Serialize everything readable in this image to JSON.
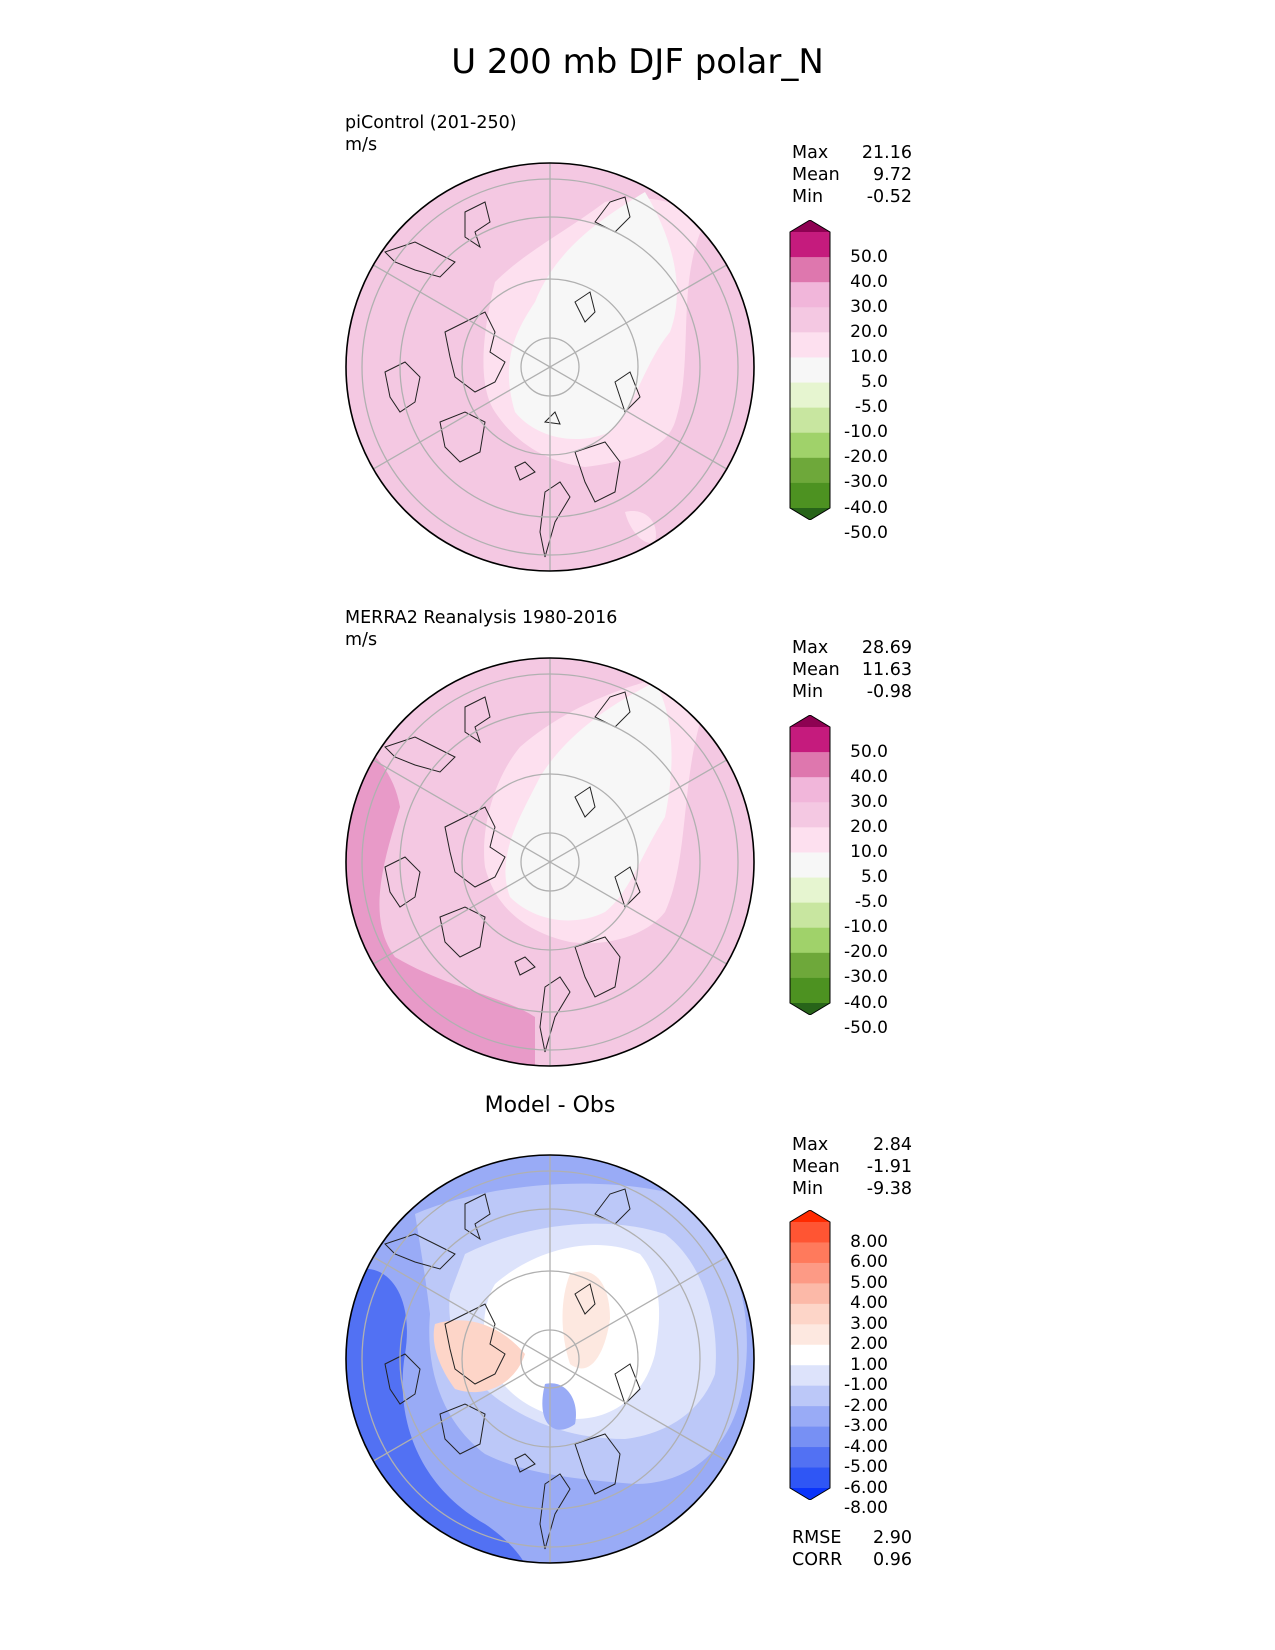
{
  "title": "U 200 mb DJF polar_N",
  "panels": [
    {
      "title": "piControl (201-250)",
      "units": "m/s",
      "stats": {
        "max_label": "Max",
        "max": "21.16",
        "mean_label": "Mean",
        "mean": "9.72",
        "min_label": "Min",
        "min": "-0.52"
      },
      "colorbar": {
        "labels": [
          "50.0",
          "40.0",
          "30.0",
          "20.0",
          "10.0",
          "5.0",
          "-5.0",
          "-10.0",
          "-20.0",
          "-30.0",
          "-40.0",
          "-50.0"
        ],
        "colors": [
          "#8e0152",
          "#c51b7d",
          "#de77ae",
          "#f1b6da",
          "#f4c8e2",
          "#fde0ef",
          "#f7f7f7",
          "#e6f5d0",
          "#c8e6a0",
          "#a0d26a",
          "#6ea83a",
          "#4d9221",
          "#276419"
        ]
      }
    },
    {
      "title": "MERRA2 Reanalysis 1980-2016",
      "units": "m/s",
      "stats": {
        "max_label": "Max",
        "max": "28.69",
        "mean_label": "Mean",
        "mean": "11.63",
        "min_label": "Min",
        "min": "-0.98"
      },
      "colorbar": {
        "labels": [
          "50.0",
          "40.0",
          "30.0",
          "20.0",
          "10.0",
          "5.0",
          "-5.0",
          "-10.0",
          "-20.0",
          "-30.0",
          "-40.0",
          "-50.0"
        ],
        "colors": [
          "#8e0152",
          "#c51b7d",
          "#de77ae",
          "#f1b6da",
          "#f4c8e2",
          "#fde0ef",
          "#f7f7f7",
          "#e6f5d0",
          "#c8e6a0",
          "#a0d26a",
          "#6ea83a",
          "#4d9221",
          "#276419"
        ]
      }
    },
    {
      "title": "Model - Obs",
      "stats": {
        "max_label": "Max",
        "max": "2.84",
        "mean_label": "Mean",
        "mean": "-1.91",
        "min_label": "Min",
        "min": "-9.38"
      },
      "colorbar": {
        "labels": [
          "8.00",
          "6.00",
          "5.00",
          "4.00",
          "3.00",
          "2.00",
          "1.00",
          "-1.00",
          "-2.00",
          "-3.00",
          "-4.00",
          "-5.00",
          "-6.00",
          "-8.00"
        ],
        "colors": [
          "#ff2a00",
          "#ff5533",
          "#ff7a5c",
          "#fd9a85",
          "#fcb9a8",
          "#fdd5c8",
          "#fde8e0",
          "#ffffff",
          "#dde3fb",
          "#bcc8f8",
          "#99abf6",
          "#7790f4",
          "#5271f3",
          "#2f56f5",
          "#0a34fb"
        ]
      },
      "metrics": {
        "rmse_label": "RMSE",
        "rmse": "2.90",
        "corr_label": "CORR",
        "corr": "0.96"
      }
    }
  ]
}
